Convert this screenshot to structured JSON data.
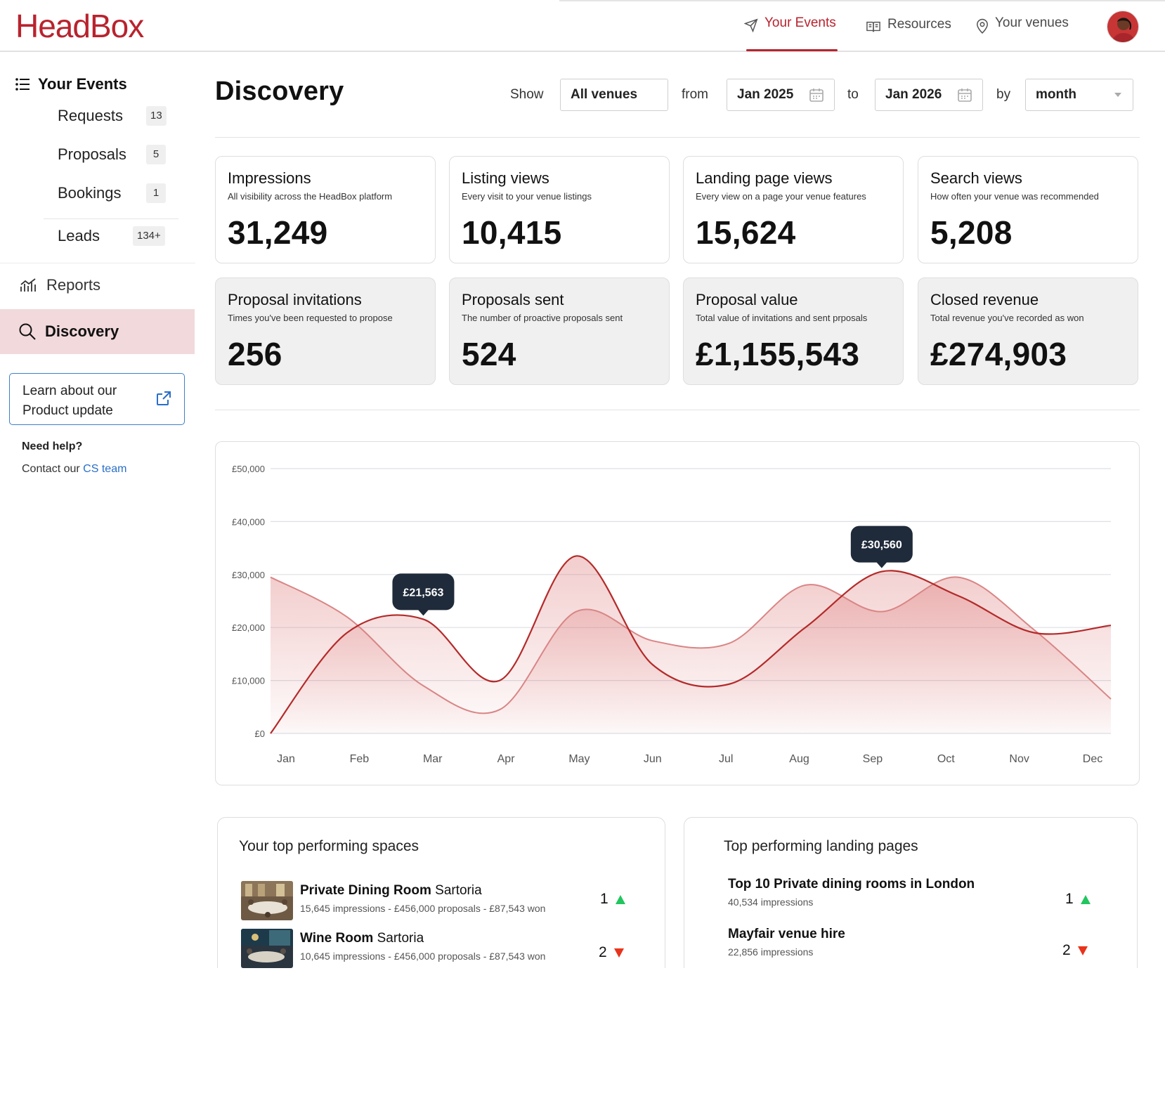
{
  "header": {
    "logo": "HeadBox",
    "nav": [
      {
        "label": "Your Events",
        "icon": "paper-plane-icon",
        "active": true
      },
      {
        "label": "Resources",
        "icon": "book-icon",
        "active": false
      },
      {
        "label": "Your venues",
        "icon": "location-pin-icon",
        "active": false
      }
    ],
    "accent_color": "#b8232e"
  },
  "sidebar": {
    "heading": "Your Events",
    "items": [
      {
        "label": "Requests",
        "count": "13"
      },
      {
        "label": "Proposals",
        "count": "5"
      },
      {
        "label": "Bookings",
        "count": "1"
      },
      {
        "label": "Leads",
        "count": "134+"
      }
    ],
    "reports": "Reports",
    "discovery": "Discovery",
    "learn": {
      "line1": "Learn about our",
      "line2": "Product update"
    },
    "help_title": "Need help?",
    "contact_prefix": "Contact our",
    "contact_link": "CS team"
  },
  "main": {
    "title": "Discovery",
    "filters": {
      "show_label": "Show",
      "venue": "All venues",
      "from_label": "from",
      "from": "Jan 2025",
      "to_label": "to",
      "to": "Jan 2026",
      "by_label": "by",
      "by": "month"
    },
    "stats": [
      {
        "title": "Impressions",
        "desc": "All visibility across the HeadBox platform",
        "value": "31,249"
      },
      {
        "title": "Listing views",
        "desc": "Every visit to your venue listings",
        "value": "10,415"
      },
      {
        "title": "Landing page views",
        "desc": "Every view on a page your venue features",
        "value": "15,624"
      },
      {
        "title": "Search views",
        "desc": "How often your venue was recommended",
        "value": "5,208"
      },
      {
        "title": "Proposal invitations",
        "desc": "Times you've been requested to propose",
        "value": "256"
      },
      {
        "title": "Proposals sent",
        "desc": "The number of proactive proposals sent",
        "value": "524"
      },
      {
        "title": "Proposal value",
        "desc": "Total value of invitations and sent prposals",
        "value": "£1,155,543"
      },
      {
        "title": "Closed revenue",
        "desc": "Total revenue you've recorded as won",
        "value": "£274,903"
      }
    ]
  },
  "chart_data": {
    "type": "area",
    "categories": [
      "Jan",
      "Feb",
      "Mar",
      "Apr",
      "May",
      "Jun",
      "Jul",
      "Aug",
      "Sep",
      "Oct",
      "Nov",
      "Dec"
    ],
    "y_ticks": [
      "£50,000",
      "£40,000",
      "£30,000",
      "£20,000",
      "£10,000",
      "£0"
    ],
    "ylim": [
      0,
      50000
    ],
    "grid": true,
    "series": [
      {
        "color": "#b42a2a",
        "values": [
          0,
          19000,
          21563,
          10000,
          33500,
          13000,
          9300,
          20000,
          30560,
          26000,
          19000,
          20400
        ]
      },
      {
        "color": "#d98585",
        "values": [
          29500,
          22000,
          9000,
          4500,
          23000,
          17500,
          17000,
          28000,
          23000,
          29500,
          19500,
          6500
        ]
      }
    ],
    "tooltips": [
      {
        "label": "£21,563",
        "series": 0,
        "index": 2
      },
      {
        "label": "£30,560",
        "series": 0,
        "index": 8
      }
    ]
  },
  "top_spaces": {
    "title": "Your top performing spaces",
    "items": [
      {
        "name_bold": "Private Dining Room",
        "name_rest": "Sartoria",
        "meta": "15,645 impressions - £456,000 proposals - £87,543 won",
        "rank": "1",
        "trend": "up"
      },
      {
        "name_bold": "Wine Room",
        "name_rest": "Sartoria",
        "meta": "10,645 impressions - £456,000 proposals - £87,543 won",
        "rank": "2",
        "trend": "down"
      }
    ]
  },
  "top_pages": {
    "title": "Top performing landing pages",
    "items": [
      {
        "name": "Top 10 Private dining rooms in London",
        "meta": "40,534 impressions",
        "rank": "1",
        "trend": "up"
      },
      {
        "name": "Mayfair venue hire",
        "meta": "22,856 impressions",
        "rank": "2",
        "trend": "down"
      }
    ]
  }
}
